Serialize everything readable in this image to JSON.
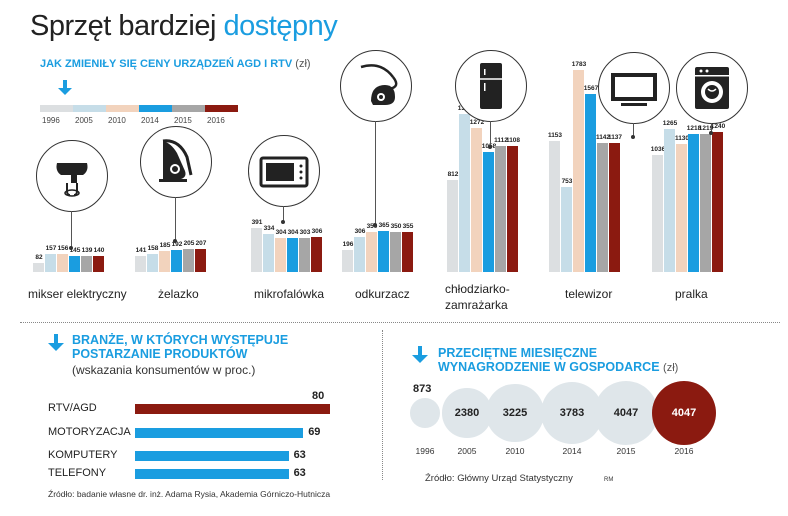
{
  "title_part1": "Sprzęt bardziej",
  "title_part2": "dostępny",
  "subtitle": "JAK ZMIENIŁY SIĘ CENY URZĄDZEŃ AGD I RTV",
  "subtitle_unit": "(zł)",
  "years": [
    "1996",
    "2005",
    "2010",
    "2014",
    "2015",
    "2016"
  ],
  "colors": {
    "1996": "#dcdfe1",
    "2005": "#c6dde8",
    "2010": "#f2d3bd",
    "2014": "#1a9de0",
    "2015": "#a6a6a6",
    "2016": "#8b1a10",
    "accent": "#1a9de0",
    "bubble": "#dfe6ea"
  },
  "chart_data": [
    {
      "type": "bar",
      "title": "JAK ZMIENIŁY SIĘ CENY URZĄDZEŃ AGD I RTV (zł)",
      "legend": [
        "1996",
        "2005",
        "2010",
        "2014",
        "2015",
        "2016"
      ],
      "categories": [
        {
          "label": "mikser elektryczny",
          "icon": "mixer-icon",
          "values": [
            82,
            157,
            156,
            145,
            139,
            140
          ]
        },
        {
          "label": "żelazko",
          "icon": "iron-icon",
          "values": [
            141,
            158,
            185,
            192,
            205,
            207
          ]
        },
        {
          "label": "mikrofalówka",
          "icon": "microwave-icon",
          "values": [
            391,
            334,
            304,
            304,
            303,
            306
          ]
        },
        {
          "label": "odkurzacz",
          "icon": "vacuum-cleaner-icon",
          "values": [
            196,
            306,
            350,
            365,
            350,
            355
          ]
        },
        {
          "label": "chłodziarko-zamrażarka",
          "label_lines": [
            "chłodziarko-",
            "zamrażarka"
          ],
          "icon": "fridge-icon",
          "values": [
            812,
            1396,
            1272,
            1058,
            1112,
            1108
          ]
        },
        {
          "label": "telewizor",
          "icon": "tv-icon",
          "values": [
            1153,
            753,
            1783,
            1567,
            1142,
            1137
          ]
        },
        {
          "label": "pralka",
          "icon": "washing-machine-icon",
          "values": [
            1036,
            1265,
            1130,
            1218,
            1219,
            1240
          ]
        }
      ]
    },
    {
      "type": "bar",
      "orientation": "horizontal",
      "title_lines": [
        "BRANŻE, W KTÓRYCH WYSTĘPUJE",
        "POSTARZANIE PRODUKTÓW"
      ],
      "subtitle": "(wskazania konsumentów w proc.)",
      "categories": [
        "RTV/AGD",
        "MOTORYZACJA",
        "KOMPUTERY",
        "TELEFONY"
      ],
      "values": [
        80,
        69,
        63,
        63
      ],
      "source": "Źródło: badanie własne dr. inż. Adama Rysia, Akademia Górniczo-Hutnicza"
    },
    {
      "type": "bubble",
      "title_lines": [
        "PRZECIĘTNE MIESIĘCZNE",
        "WYNAGRODZENIE W GOSPODARCE"
      ],
      "unit": "(zł)",
      "x": [
        "1996",
        "2005",
        "2010",
        "2014",
        "2015",
        "2016"
      ],
      "values": [
        873,
        2380,
        3225,
        3783,
        4047,
        4047
      ],
      "source": "Źródło: Główny Urząd Statystyczny"
    }
  ],
  "credit": "RM"
}
